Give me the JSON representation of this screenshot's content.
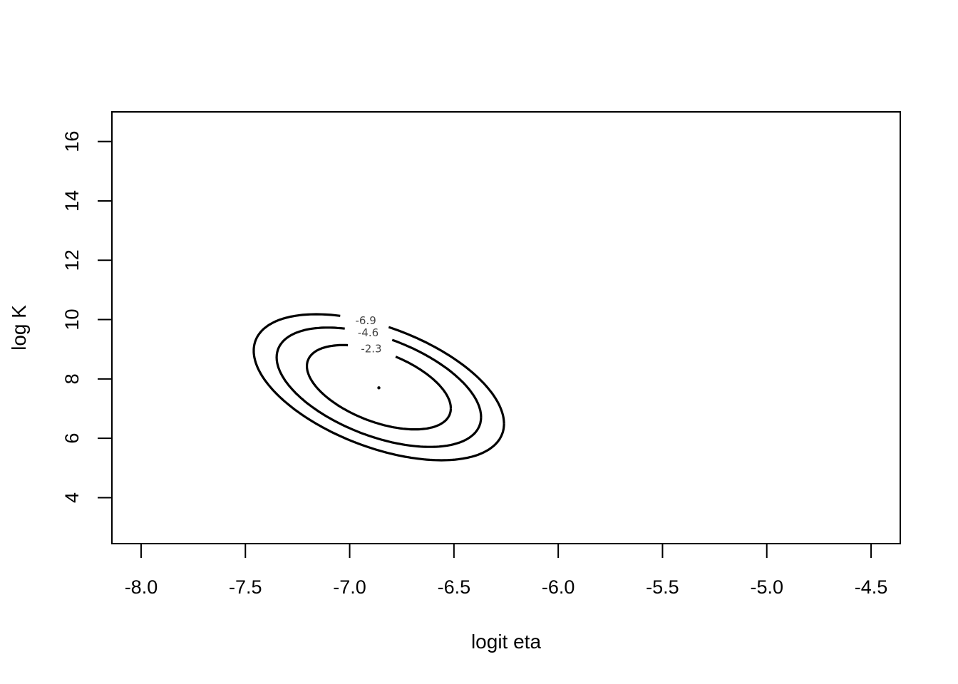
{
  "chart_data": {
    "type": "contour",
    "title": "",
    "xlabel": "logit eta",
    "ylabel": "log K",
    "xlim": [
      -8.14,
      -4.36
    ],
    "ylim": [
      2.45,
      17.0
    ],
    "x_ticks": [
      "-8.0",
      "-7.5",
      "-7.0",
      "-6.5",
      "-6.0",
      "-5.5",
      "-5.0",
      "-4.5"
    ],
    "y_ticks": [
      "4",
      "6",
      "8",
      "10",
      "12",
      "14",
      "16"
    ],
    "grid": false,
    "center": {
      "x": -6.86,
      "y": 7.7
    },
    "contours": [
      {
        "label": "-2.3",
        "level": -2.3,
        "cx": -6.86,
        "cy": 7.72,
        "sx": 0.345,
        "sy": 1.42,
        "rho": -0.5
      },
      {
        "label": "-4.6",
        "level": -4.6,
        "cx": -6.86,
        "cy": 7.72,
        "sx": 0.49,
        "sy": 2.01,
        "rho": -0.5
      },
      {
        "label": "-6.9",
        "level": -6.9,
        "cx": -6.86,
        "cy": 7.72,
        "sx": 0.6,
        "sy": 2.46,
        "rho": -0.5
      }
    ]
  }
}
